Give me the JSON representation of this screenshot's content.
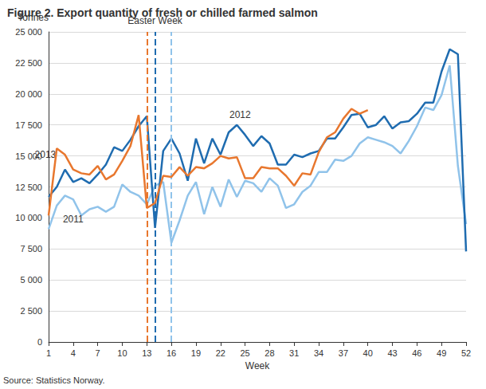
{
  "chart_data": {
    "type": "line",
    "title": "Figure 2. Export quantity of fresh or chilled farmed salmon",
    "y_label": "Tonnes",
    "x_label": "Week",
    "source": "Source: Statistics Norway.",
    "annotations": [
      {
        "text": "Easter Week",
        "x": 14
      }
    ],
    "x": [
      1,
      2,
      3,
      4,
      5,
      6,
      7,
      8,
      9,
      10,
      11,
      12,
      13,
      14,
      15,
      16,
      17,
      18,
      19,
      20,
      21,
      22,
      23,
      24,
      25,
      26,
      27,
      28,
      29,
      30,
      31,
      32,
      33,
      34,
      35,
      36,
      37,
      38,
      39,
      40,
      41,
      42,
      43,
      44,
      45,
      46,
      47,
      48,
      49,
      50,
      51,
      52
    ],
    "xlim": [
      1,
      52
    ],
    "xticks": [
      1,
      4,
      7,
      10,
      13,
      16,
      19,
      22,
      25,
      28,
      31,
      34,
      37,
      40,
      43,
      46,
      49,
      52
    ],
    "ylim": [
      0,
      25000
    ],
    "yticks": [
      0,
      {
        "value": 2500,
        "label": "2 500"
      },
      {
        "value": 5000,
        "label": "5 000"
      },
      {
        "value": 7500,
        "label": "7 500"
      },
      {
        "value": 10000,
        "label": "10 000"
      },
      {
        "value": 12500,
        "label": "12 500"
      },
      {
        "value": 15000,
        "label": "15 000"
      },
      {
        "value": 17500,
        "label": "17 500"
      },
      {
        "value": 20000,
        "label": "20 000"
      },
      {
        "value": 22500,
        "label": "22 500"
      },
      {
        "value": 25000,
        "label": "25 000"
      }
    ],
    "grid": true,
    "series": [
      {
        "name": "2011",
        "color": "#90c3ea",
        "easter_week": 16,
        "values": [
          9100,
          11000,
          11800,
          11500,
          10200,
          10700,
          10900,
          10500,
          10900,
          12700,
          12100,
          11800,
          11100,
          12600,
          12900,
          8000,
          9800,
          11800,
          12900,
          10300,
          12500,
          10900,
          13100,
          11700,
          13000,
          12800,
          12100,
          13200,
          12600,
          10800,
          11100,
          12100,
          12600,
          13700,
          13700,
          14700,
          14600,
          15000,
          16000,
          16500,
          16300,
          16100,
          15800,
          15200,
          16200,
          17400,
          18900,
          18700,
          19900,
          22300,
          14200,
          9500
        ]
      },
      {
        "name": "2012",
        "color": "#1f6cb0",
        "easter_week": 14,
        "values": [
          11700,
          12500,
          13900,
          12900,
          13200,
          12800,
          13500,
          14300,
          15700,
          15400,
          16300,
          17400,
          18200,
          9200,
          15400,
          16400,
          15200,
          13000,
          16400,
          14400,
          16400,
          15100,
          16900,
          17500,
          16700,
          15800,
          16600,
          16000,
          14300,
          14300,
          15100,
          14900,
          15200,
          15400,
          16400,
          16400,
          17300,
          18300,
          18400,
          17300,
          17500,
          18200,
          17200,
          17700,
          17800,
          18400,
          19300,
          19300,
          21800,
          23600,
          23200,
          7300
        ]
      },
      {
        "name": "2013",
        "color": "#e8772e",
        "easter_week": 13,
        "values": [
          10200,
          15600,
          15100,
          13900,
          13600,
          13500,
          14200,
          13100,
          13500,
          14600,
          15800,
          18300,
          10800,
          11200,
          13400,
          13300,
          14100,
          13400,
          14100,
          14000,
          14400,
          15000,
          14800,
          14900,
          13200,
          13200,
          14100,
          14000,
          14000,
          13400,
          12600,
          13600,
          13500,
          15300,
          16500,
          16900,
          18000,
          18800,
          18400,
          18700,
          null,
          null,
          null,
          null,
          null,
          null,
          null,
          null,
          null,
          null,
          null,
          null
        ]
      }
    ]
  }
}
